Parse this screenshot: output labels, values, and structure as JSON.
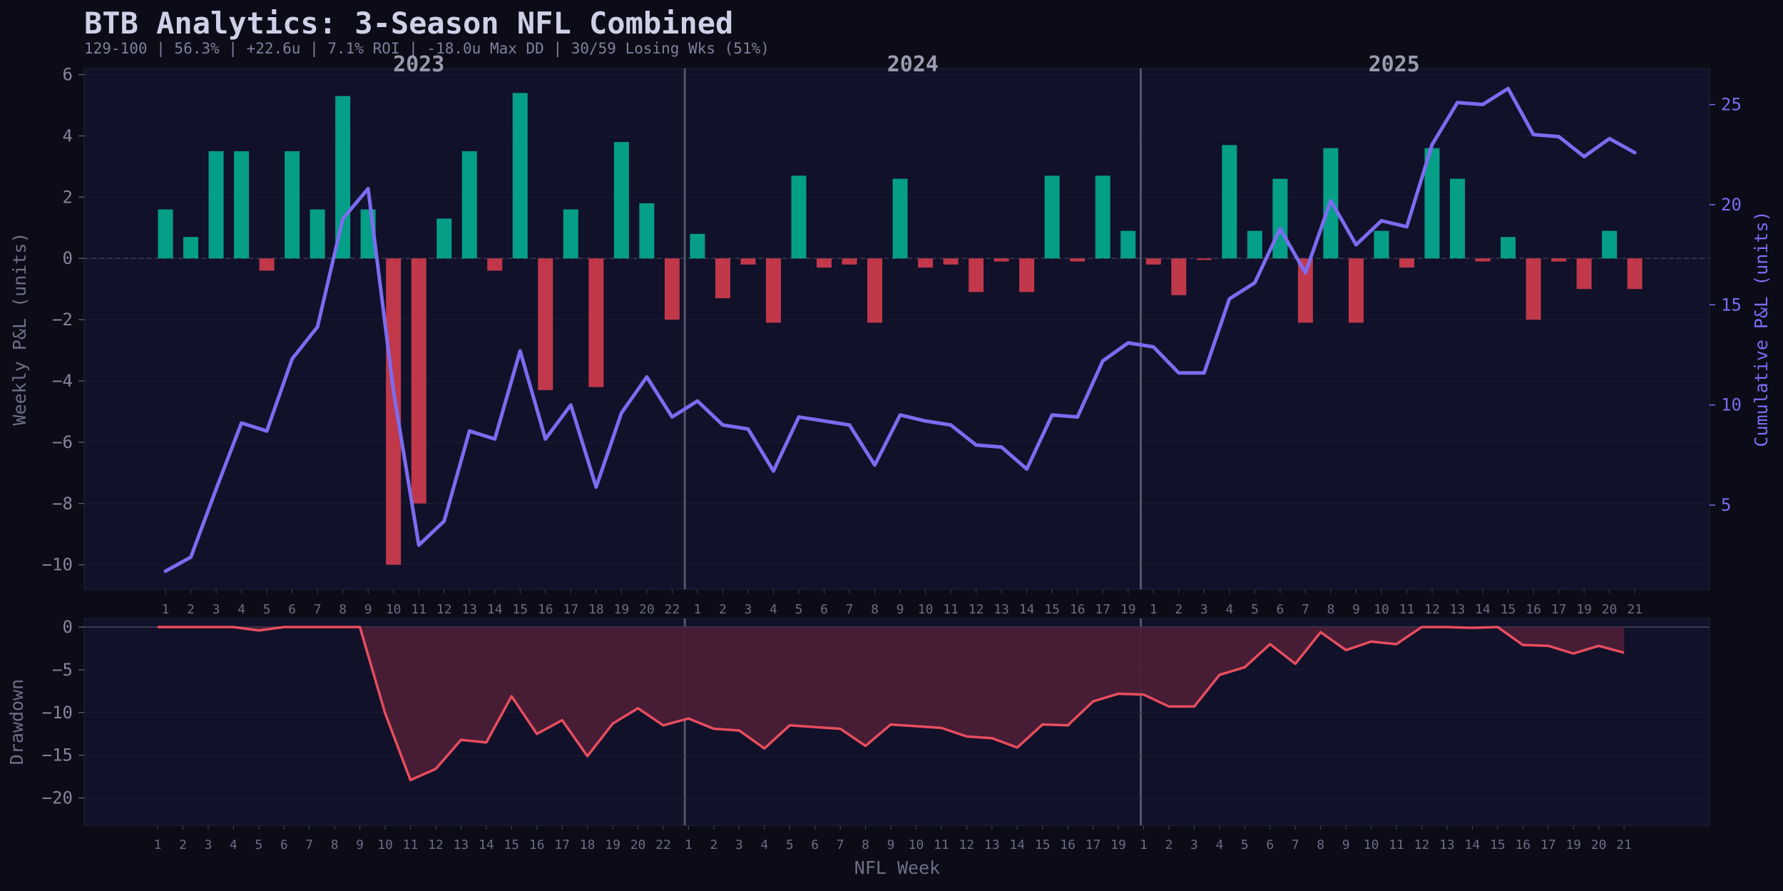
{
  "title": "BTB Analytics: 3-Season NFL Combined",
  "subtitle": "129-100  |  56.3%  |  +22.6u  |  7.1% ROI  |  -18.0u Max DD  |  30/59 Losing Wks (51%)",
  "colors": {
    "background": "#0b0c17",
    "panel": "#11112a",
    "win_bar": "#059e87",
    "loss_bar": "#c0384a",
    "cumulative_line": "#7b6cf0",
    "drawdown_line": "#e84d5e",
    "drawdown_fill": "#4b1f37",
    "season_divider": "#55556a"
  },
  "chart_data": [
    {
      "type": "bar",
      "secondary_type": "line",
      "title": "",
      "xlabel": "",
      "ylabel": "Weekly P&L (units)",
      "y2label": "Cumulative P&L (units)",
      "ylim": [
        -10.8,
        6.2
      ],
      "y2lim": [
        0.8,
        26.8
      ],
      "yticks": [
        6,
        4,
        2,
        0,
        -2,
        -4,
        -6,
        -8,
        -10
      ],
      "y2ticks": [
        25,
        20,
        15,
        10,
        5
      ],
      "grid": true,
      "seasons": [
        {
          "name": "2023",
          "weeks": [
            "1",
            "2",
            "3",
            "4",
            "5",
            "6",
            "7",
            "8",
            "9",
            "10",
            "11",
            "12",
            "13",
            "14",
            "15",
            "16",
            "17",
            "18",
            "19",
            "20",
            "22"
          ]
        },
        {
          "name": "2024",
          "weeks": [
            "1",
            "2",
            "3",
            "4",
            "5",
            "6",
            "7",
            "8",
            "9",
            "10",
            "11",
            "12",
            "13",
            "14",
            "15",
            "16",
            "17",
            "19"
          ]
        },
        {
          "name": "2025",
          "weeks": [
            "1",
            "2",
            "3",
            "4",
            "5",
            "6",
            "7",
            "8",
            "9",
            "10",
            "11",
            "12",
            "13",
            "14",
            "15",
            "16",
            "17",
            "19",
            "20",
            "21"
          ]
        }
      ],
      "series": [
        {
          "name": "Weekly P&L",
          "values": [
            1.6,
            0.7,
            3.5,
            3.5,
            -0.4,
            3.5,
            1.6,
            5.3,
            1.6,
            -10.0,
            -8.0,
            1.3,
            3.5,
            -0.4,
            5.4,
            -4.3,
            1.6,
            -4.2,
            3.8,
            1.8,
            -2.0,
            0.8,
            -1.3,
            -0.2,
            -2.1,
            2.7,
            -0.3,
            -0.2,
            -2.1,
            2.6,
            -0.3,
            -0.2,
            -1.1,
            -0.1,
            -1.1,
            2.7,
            -0.1,
            2.7,
            0.9,
            -0.2,
            -1.2,
            -0.05,
            3.7,
            0.9,
            2.6,
            -2.1,
            3.6,
            -2.1,
            0.9,
            -0.3,
            3.6,
            2.6,
            -0.1,
            0.7,
            -2.0,
            -0.1,
            -1.0,
            0.9,
            -1.0
          ]
        },
        {
          "name": "Cumulative P&L",
          "values": [
            1.7,
            2.4,
            5.8,
            9.1,
            8.7,
            12.3,
            13.9,
            19.3,
            20.8,
            10.7,
            3.0,
            4.2,
            8.7,
            8.3,
            12.7,
            8.3,
            10.0,
            5.9,
            9.6,
            11.4,
            9.4,
            10.2,
            9.0,
            8.8,
            6.7,
            9.4,
            9.2,
            9.0,
            7.0,
            9.5,
            9.2,
            9.0,
            8.0,
            7.9,
            6.8,
            9.5,
            9.4,
            12.2,
            13.1,
            12.9,
            11.6,
            11.6,
            15.3,
            16.1,
            18.8,
            16.6,
            20.2,
            18.0,
            19.2,
            18.9,
            23.0,
            25.1,
            25.0,
            25.8,
            23.5,
            23.4,
            22.4,
            23.3,
            22.6
          ]
        }
      ]
    },
    {
      "type": "area",
      "title": "",
      "xlabel": "NFL Week",
      "ylabel": "Drawdown",
      "ylim": [
        -23.2,
        1.0
      ],
      "yticks": [
        0,
        -5,
        -10,
        -15,
        -20
      ],
      "grid": true,
      "series": [
        {
          "name": "Drawdown",
          "values": [
            0,
            0,
            0,
            0,
            -0.4,
            0,
            0,
            0,
            0,
            -10.1,
            -17.9,
            -16.6,
            -13.2,
            -13.5,
            -8.1,
            -12.5,
            -10.9,
            -15.1,
            -11.3,
            -9.5,
            -11.5,
            -10.7,
            -11.9,
            -12.1,
            -14.2,
            -11.5,
            -11.7,
            -11.9,
            -13.9,
            -11.4,
            -11.6,
            -11.8,
            -12.8,
            -13.0,
            -14.1,
            -11.4,
            -11.5,
            -8.7,
            -7.8,
            -7.9,
            -9.3,
            -9.3,
            -5.6,
            -4.7,
            -2.0,
            -4.3,
            -0.6,
            -2.7,
            -1.7,
            -2.0,
            0,
            0,
            -0.1,
            0,
            -2.1,
            -2.2,
            -3.1,
            -2.2,
            -3.0
          ]
        }
      ]
    }
  ]
}
